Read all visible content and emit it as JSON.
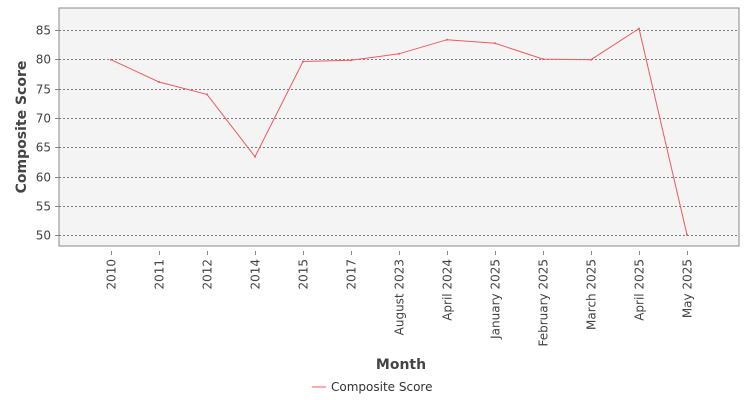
{
  "chart_data": {
    "type": "line",
    "title": "",
    "xlabel": "Month",
    "ylabel": "Composite Score",
    "categories": [
      "2010",
      "2011",
      "2012",
      "2014",
      "2015",
      "2017",
      "August 2023",
      "April 2024",
      "January 2025",
      "February 2025",
      "March 2025",
      "April 2025",
      "May 2025"
    ],
    "series": [
      {
        "name": "Composite Score",
        "color": "#f05a5a",
        "values": [
          79.9,
          76.1,
          74.0,
          63.4,
          79.6,
          79.8,
          80.9,
          83.3,
          82.7,
          80.0,
          79.9,
          85.2,
          50.1
        ]
      }
    ],
    "ylim": [
      48.2,
      88.7
    ],
    "yticks": [
      50,
      55,
      60,
      65,
      70,
      75,
      80,
      85
    ],
    "grid": true,
    "legend_position": "bottom-center",
    "colors": {
      "plot_background": "#f4f4f4",
      "grid": "#555555",
      "axis": "#888888"
    }
  }
}
